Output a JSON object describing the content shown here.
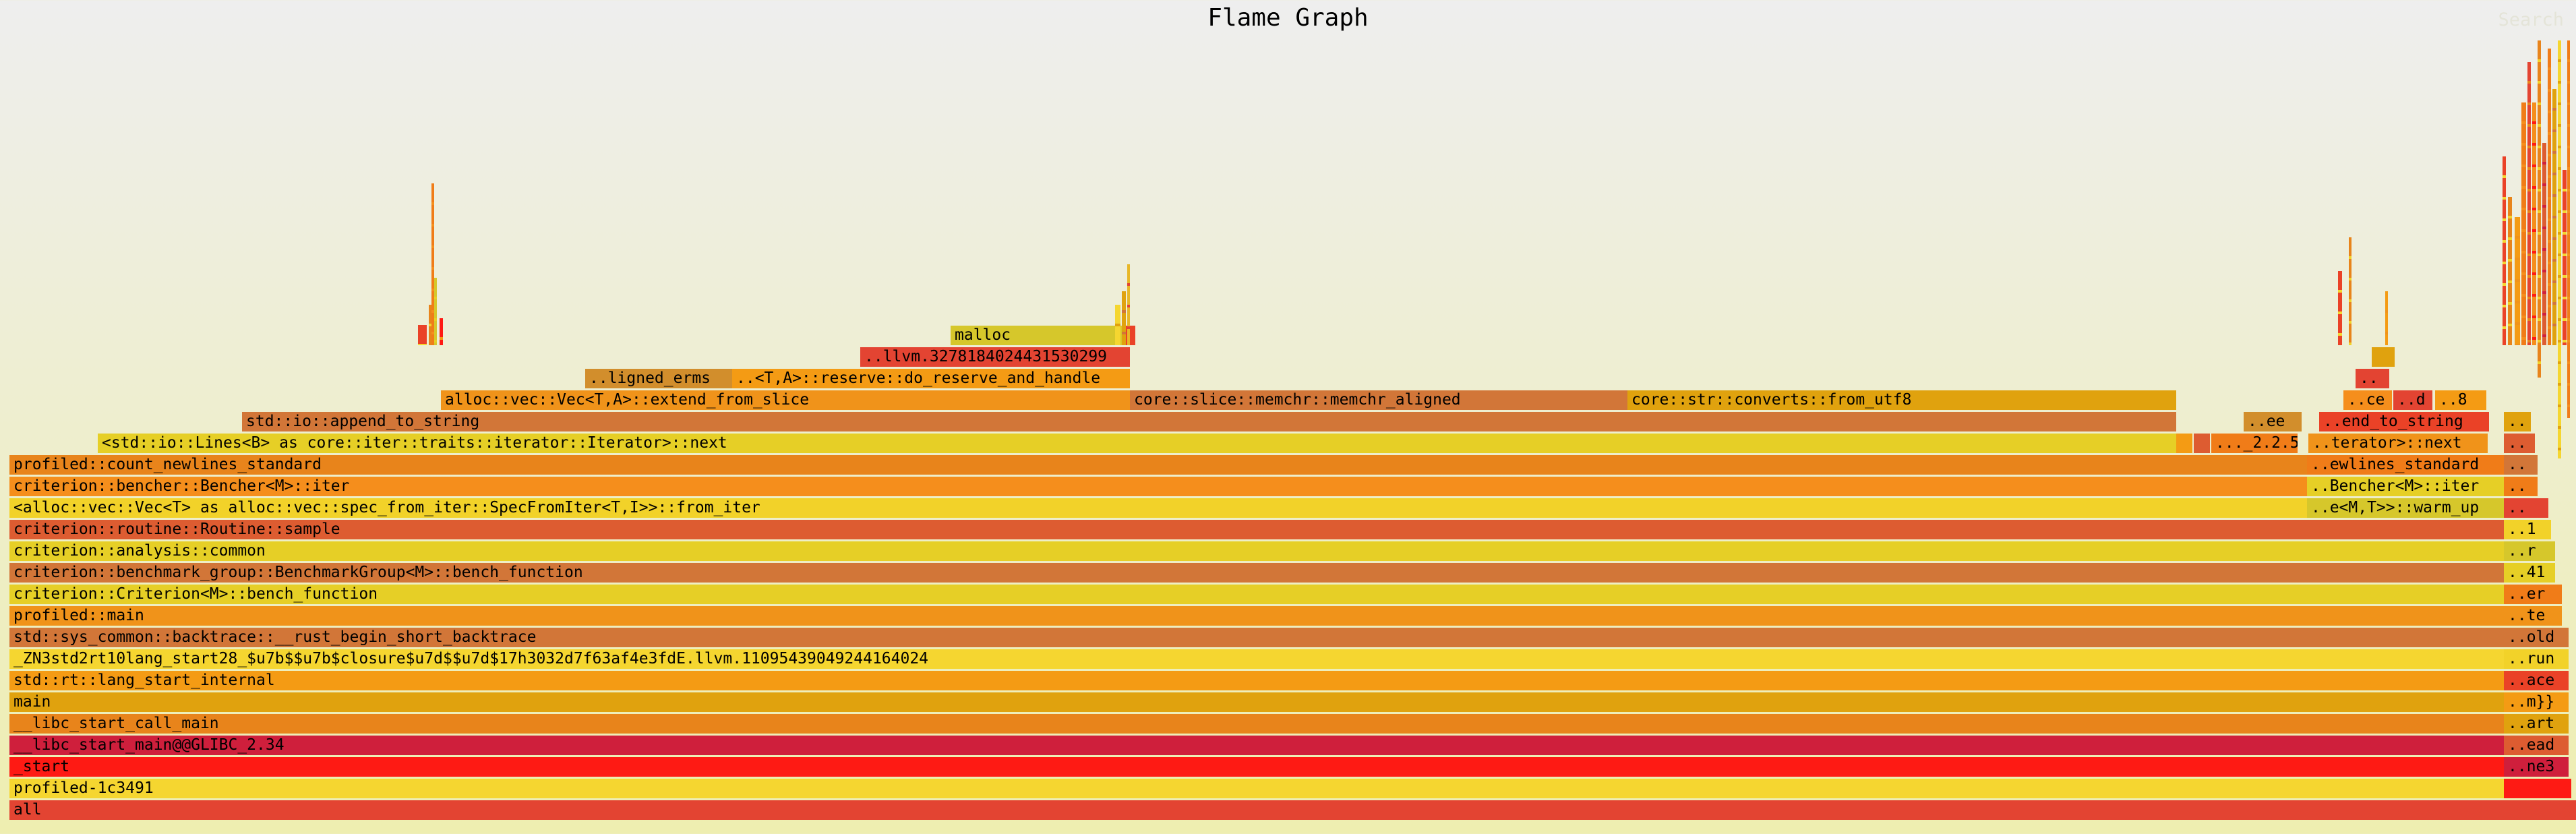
{
  "title": "Flame Graph",
  "search_label": "Search",
  "palette": [
    "#e34432",
    "#f5d630",
    "#fe1a14",
    "#cf1f3c",
    "#e8841b",
    "#e0a20e",
    "#f49b14",
    "#d6c72b",
    "#f2d229",
    "#d27638",
    "#f0931a",
    "#e6cf26",
    "#f07c18",
    "#d28e2c",
    "#e8b727",
    "#ea4227",
    "#f58e1c",
    "#dd5c31"
  ],
  "rows": [
    [
      [
        "all",
        14,
        3814,
        0
      ]
    ],
    [
      [
        "profiled-1c3491",
        14,
        3700,
        1
      ],
      [
        "",
        3714,
        100,
        2
      ]
    ],
    [
      [
        "_start",
        14,
        3700,
        2
      ],
      [
        "..ne3",
        3714,
        96,
        3
      ]
    ],
    [
      [
        "__libc_start_main@@GLIBC_2.34",
        14,
        3700,
        3
      ],
      [
        "..ead",
        3714,
        96,
        17
      ]
    ],
    [
      [
        "__libc_start_call_main",
        14,
        3700,
        4
      ],
      [
        "..art",
        3714,
        96,
        5
      ]
    ],
    [
      [
        "main",
        14,
        3700,
        5
      ],
      [
        "..m}}",
        3714,
        96,
        6
      ]
    ],
    [
      [
        "std::rt::lang_start_internal",
        14,
        3700,
        6
      ],
      [
        "..ace",
        3714,
        96,
        15
      ]
    ],
    [
      [
        "_ZN3std2rt10lang_start28_$u7b$$u7b$closure$u7d$$u7d$17h3032d7f63af4e3fdE.llvm.11095439049244164024",
        14,
        3700,
        1
      ],
      [
        "..run",
        3714,
        96,
        8
      ]
    ],
    [
      [
        "std::sys_common::backtrace::__rust_begin_short_backtrace",
        14,
        3700,
        9
      ],
      [
        "..old",
        3714,
        96,
        9
      ]
    ],
    [
      [
        "profiled::main",
        14,
        3700,
        10
      ],
      [
        "..te",
        3714,
        86,
        10
      ]
    ],
    [
      [
        "criterion::Criterion<M>::bench_function",
        14,
        3700,
        11
      ],
      [
        "..er",
        3714,
        86,
        12
      ]
    ],
    [
      [
        "criterion::benchmark_group::BenchmarkGroup<M>::bench_function",
        14,
        3700,
        9
      ],
      [
        "..41",
        3714,
        76,
        11
      ]
    ],
    [
      [
        "criterion::analysis::common",
        14,
        3700,
        11
      ],
      [
        "..r",
        3714,
        76,
        7
      ]
    ],
    [
      [
        "criterion::routine::Routine::sample",
        14,
        3700,
        17
      ],
      [
        "..1",
        3714,
        70,
        8
      ]
    ],
    [
      [
        "<alloc::vec::Vec<T> as alloc::vec::spec_from_iter::SpecFromIter<T,I>>::from_iter",
        14,
        3408,
        8
      ],
      [
        "..e<M,T>>::warm_up",
        3422,
        292,
        7
      ],
      [
        "..",
        3714,
        66,
        0
      ]
    ],
    [
      [
        "criterion::bencher::Bencher<M>::iter",
        14,
        3408,
        16
      ],
      [
        "..Bencher<M>::iter",
        3422,
        292,
        11
      ],
      [
        "..",
        3714,
        50,
        12
      ]
    ],
    [
      [
        "profiled::count_newlines_standard",
        14,
        3408,
        4
      ],
      [
        "..ewlines_standard",
        3422,
        292,
        12
      ],
      [
        "..",
        3714,
        50,
        9
      ]
    ],
    [
      [
        "<std::io::Lines<B> as core::iter::traits::iterator::Iterator>::next",
        145,
        3083,
        11
      ],
      [
        "",
        3228,
        24,
        6
      ],
      [
        "",
        3254,
        24,
        17
      ],
      [
        "..._2.2.5",
        3280,
        128,
        12
      ],
      [
        "..terator>::next",
        3424,
        266,
        10
      ],
      [
        "..",
        3714,
        46,
        17
      ]
    ],
    [
      [
        "std::io::append_to_string",
        359,
        2869,
        9
      ],
      [
        "..ee",
        3328,
        86,
        13
      ],
      [
        "..end_to_string",
        3440,
        252,
        15
      ],
      [
        "..",
        3714,
        40,
        5
      ]
    ],
    [
      [
        "alloc::vec::Vec<T,A>::extend_from_slice",
        654,
        1022,
        10
      ],
      [
        "core::slice::memchr::memchr_aligned",
        1676,
        738,
        9
      ],
      [
        "core::str::converts::from_utf8",
        2414,
        814,
        5
      ],
      [
        "..ce",
        3476,
        72,
        16
      ],
      [
        "..d",
        3550,
        58,
        0
      ],
      [
        "..8",
        3612,
        76,
        6
      ]
    ],
    [
      [
        "..ligned_erms",
        868,
        218,
        13
      ],
      [
        "..<T,A>::reserve::do_reserve_and_handle",
        1086,
        590,
        6
      ],
      [
        "..",
        3494,
        50,
        0
      ]
    ],
    [
      [
        "..llvm.3278184024431530299",
        1276,
        400,
        0
      ],
      [
        "",
        3518,
        34,
        5
      ]
    ],
    [
      [
        "malloc",
        1410,
        254,
        7
      ],
      [
        "",
        1664,
        20,
        15
      ]
    ]
  ],
  "spikes": [
    [
      620,
      13,
      30,
      15
    ],
    [
      636,
      8,
      60,
      4
    ],
    [
      640,
      4,
      240,
      12
    ],
    [
      644,
      4,
      100,
      7
    ],
    [
      652,
      5,
      40,
      2
    ],
    [
      1654,
      8,
      60,
      1
    ],
    [
      1664,
      6,
      80,
      5
    ],
    [
      1672,
      4,
      120,
      14
    ],
    [
      3468,
      6,
      110,
      15
    ],
    [
      3484,
      4,
      160,
      4
    ],
    [
      3538,
      4,
      80,
      6
    ],
    [
      3712,
      5,
      280,
      15
    ],
    [
      3720,
      6,
      220,
      4
    ],
    [
      3730,
      8,
      190,
      6
    ],
    [
      3740,
      7,
      360,
      12
    ],
    [
      3749,
      5,
      420,
      0
    ],
    [
      3756,
      6,
      360,
      16
    ],
    [
      3764,
      5,
      500,
      4
    ],
    [
      3771,
      6,
      300,
      17
    ],
    [
      3779,
      5,
      440,
      12
    ],
    [
      3786,
      6,
      380,
      5
    ],
    [
      3794,
      5,
      620,
      1
    ],
    [
      3801,
      6,
      260,
      15
    ],
    [
      3808,
      4,
      560,
      12
    ]
  ]
}
